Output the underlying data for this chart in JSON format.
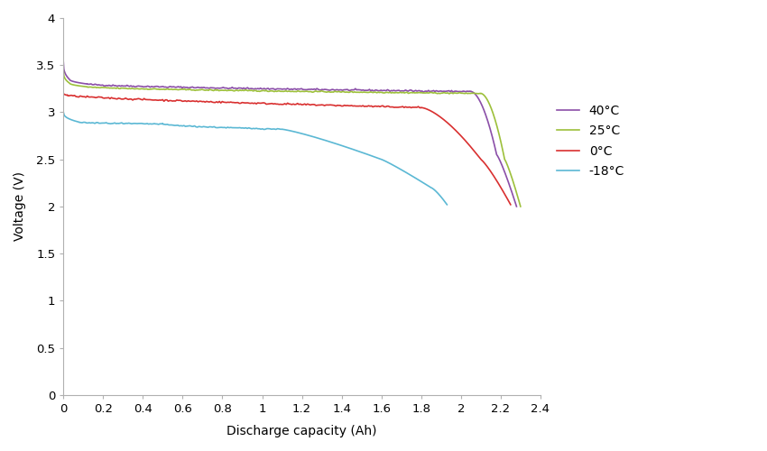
{
  "title": "",
  "xlabel": "Discharge capacity (Ah)",
  "ylabel": "Voltage (V)",
  "xlim": [
    0,
    2.4
  ],
  "ylim": [
    0,
    4
  ],
  "yticks": [
    0,
    0.5,
    1.0,
    1.5,
    2.0,
    2.5,
    3.0,
    3.5,
    4.0
  ],
  "xticks": [
    0,
    0.2,
    0.4,
    0.6,
    0.8,
    1.0,
    1.2,
    1.4,
    1.6,
    1.8,
    2.0,
    2.2,
    2.4
  ],
  "legend_labels": [
    "40°C",
    "25°C",
    "0°C",
    "-18°C"
  ],
  "colors": [
    "#8B4FA8",
    "#9DC03B",
    "#D93030",
    "#5BB8D4"
  ],
  "background_color": "#ffffff",
  "figsize": [
    8.5,
    5.0
  ],
  "dpi": 100
}
